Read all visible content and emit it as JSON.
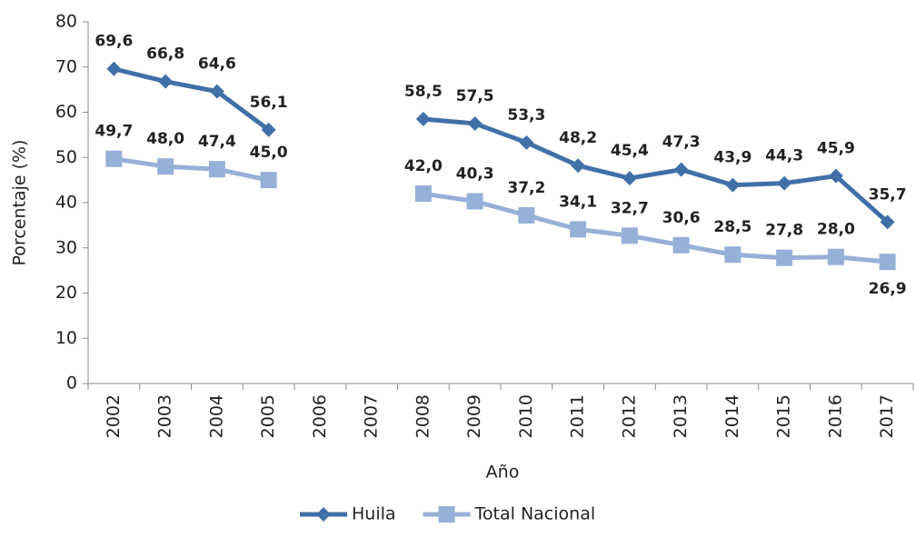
{
  "chart_data": {
    "type": "line",
    "x_label": "Año",
    "y_label": "Porcentaje (%)",
    "categories": [
      "2002",
      "2003",
      "2004",
      "2005",
      "2006",
      "2007",
      "2008",
      "2009",
      "2010",
      "2011",
      "2012",
      "2013",
      "2014",
      "2015",
      "2016",
      "2017"
    ],
    "series": [
      {
        "name": "Huila",
        "color": "#4170a8",
        "label_color": "#1f3554",
        "marker": "diamond",
        "values": [
          69.6,
          66.8,
          64.6,
          56.1,
          null,
          null,
          58.5,
          57.5,
          53.3,
          48.2,
          45.4,
          47.3,
          43.9,
          44.3,
          45.9,
          35.7
        ],
        "value_labels": [
          "69,6",
          "66,8",
          "64,6",
          "56,1",
          null,
          null,
          "58,5",
          "57,5",
          "53,3",
          "48,2",
          "45,4",
          "47,3",
          "43,9",
          "44,3",
          "45,9",
          "35,7"
        ]
      },
      {
        "name": "Total Nacional",
        "color": "#96b0d8",
        "label_color": "#5b8fd6",
        "marker": "square",
        "values": [
          49.7,
          48.0,
          47.4,
          45.0,
          null,
          null,
          42.0,
          40.3,
          37.2,
          34.1,
          32.7,
          30.6,
          28.5,
          27.8,
          28.0,
          26.9
        ],
        "value_labels": [
          "49,7",
          "48,0",
          "47,4",
          "45,0",
          null,
          null,
          "42,0",
          "40,3",
          "37,2",
          "34,1",
          "32,7",
          "30,6",
          "28,5",
          "27,8",
          "28,0",
          "26,9"
        ]
      }
    ],
    "ylim": [
      0,
      80
    ],
    "yticks": [
      0,
      10,
      20,
      30,
      40,
      50,
      60,
      70,
      80
    ],
    "legend": "bottom"
  }
}
